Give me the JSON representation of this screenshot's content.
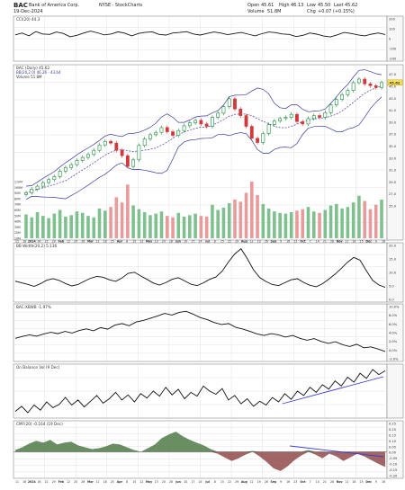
{
  "header": {
    "symbol": "BAC",
    "company": "Bank of America Corp.",
    "exchange_info": "NYSE · StockCharts",
    "date": "19-Dec-2024",
    "open_label": "Open",
    "open": "45.61",
    "high_label": "High",
    "high": "46.13",
    "low_label": "Low",
    "low": "45.50",
    "last_label": "Last",
    "last": "45.62",
    "volume_label": "Volume",
    "volume": "51.8M",
    "chg_label": "Chg",
    "chg": "+0.07 (+0.15%)"
  },
  "colors": {
    "up": "#1e8a3c",
    "down": "#d13a3a",
    "vol_up": "#7fc08f",
    "vol_down": "#e99a9a",
    "bb": "#3a3aa0",
    "line": "#111111",
    "trend": "#3b3bd6",
    "cmf_fill": "#4d7a46",
    "cmf_neg": "#8a3f3f",
    "grid": "#d8d8d8",
    "last_badge": "#ffe24a"
  },
  "chart_data": [
    {
      "type": "line",
      "name": "cci-panel",
      "legend": "CCI(20) 44.3",
      "ylim": [
        -200,
        200
      ],
      "y_ticks": [
        "200",
        "100",
        "0",
        "-100",
        "-200"
      ],
      "values": [
        40,
        60,
        30,
        75,
        50,
        45,
        70,
        55,
        20,
        35,
        60,
        80,
        62,
        40,
        50,
        72,
        58,
        30,
        55,
        68,
        72,
        45,
        38,
        60,
        66,
        74,
        50,
        38,
        55,
        70,
        60,
        42,
        55,
        66,
        48,
        30,
        52,
        70,
        64,
        50,
        45,
        22,
        35,
        60,
        48,
        28,
        18,
        40,
        66,
        55,
        40,
        30,
        48,
        60,
        44
      ]
    },
    {
      "type": "candlestick",
      "name": "price-panel",
      "legend": "BAC (Daily) 45.62",
      "bb_legend": "BB(20,2.0) 46.26 - 43.64",
      "vol_legend": "Volume 51.8M",
      "ylim": [
        22,
        48
      ],
      "y_ticks": [
        "47.0",
        "46.0",
        "45.0",
        "44.0",
        "43.0",
        "42.0",
        "41.0",
        "40.0",
        "39.0",
        "38.0",
        "37.0",
        "36.0",
        "35.0",
        "34.0",
        "33.0",
        "32.0",
        "31.0",
        "30.0",
        "29.0",
        "28.0",
        "27.0",
        "26.0",
        "25.0"
      ],
      "last_value": "45.62",
      "x_ticks": [
        "11",
        "18",
        "2024",
        "16",
        "22",
        "29",
        "Feb",
        "12",
        "20",
        "26",
        "Mar",
        "11",
        "18",
        "25",
        "Apr",
        "8",
        "15",
        "22",
        "May",
        "13",
        "20",
        "28",
        "Jun",
        "10",
        "17",
        "24",
        "Jul",
        "8",
        "15",
        "22",
        "29",
        "Aug",
        "12",
        "19",
        "26",
        "Sep",
        "9",
        "16",
        "23",
        "Oct",
        "7",
        "14",
        "21",
        "28",
        "Nov",
        "11",
        "18",
        "25",
        "Dec",
        "9",
        "16"
      ],
      "volume_ticks": [
        "110M",
        "100M",
        "90M",
        "80M",
        "70M",
        "60M",
        "50M",
        "40M",
        "30M",
        "20M",
        "10M"
      ],
      "closes": [
        27.2,
        27.8,
        28.3,
        28.9,
        29.4,
        29.9,
        30.8,
        31.4,
        31.9,
        32.6,
        33.1,
        33.6,
        34.3,
        35.2,
        35.8,
        35.5,
        34.3,
        33.4,
        31.6,
        32.7,
        35.1,
        36.2,
        36.9,
        37.3,
        38.1,
        37.4,
        36.8,
        37.6,
        38.4,
        38.9,
        39.3,
        38.7,
        38.3,
        39.8,
        40.5,
        41.6,
        42.9,
        41.2,
        40.1,
        38.3,
        36.3,
        35.6,
        37.1,
        38.6,
        39.2,
        39.6,
        39.8,
        40.3,
        39.1,
        38.7,
        39.6,
        40.1,
        39.8,
        40.6,
        41.9,
        42.8,
        43.6,
        44.3,
        45.6,
        46.2,
        45.4,
        45.1,
        44.8,
        45.62
      ],
      "volumes": [
        32,
        28,
        35,
        30,
        27,
        33,
        38,
        29,
        31,
        36,
        34,
        30,
        28,
        40,
        37,
        42,
        55,
        48,
        72,
        44,
        39,
        35,
        31,
        33,
        36,
        30,
        28,
        34,
        29,
        31,
        33,
        30,
        29,
        45,
        38,
        41,
        47,
        52,
        49,
        61,
        76,
        58,
        46,
        40,
        36,
        34,
        33,
        35,
        37,
        39,
        42,
        36,
        34,
        38,
        44,
        46,
        40,
        42,
        48,
        57,
        50,
        39,
        45,
        51.8
      ]
    },
    {
      "type": "line",
      "name": "bb-width-panel",
      "legend": "BB Width(20,2) 5.136",
      "ylim": [
        0,
        24
      ],
      "y_ticks": [
        "20.0",
        "15.0",
        "10.0",
        "5.0",
        "0.0"
      ],
      "values": [
        8,
        7.2,
        6.5,
        5.6,
        6.8,
        8.4,
        9.1,
        8.3,
        6.9,
        5.8,
        6.4,
        7.9,
        9.3,
        10.2,
        9.8,
        8.6,
        7.9,
        9.4,
        11.6,
        12.1,
        10.4,
        8.8,
        7.1,
        6.2,
        7.3,
        8.8,
        9.6,
        8.1,
        6.6,
        5.9,
        7.2,
        8.8,
        9.9,
        12.6,
        16.8,
        20.5,
        22.9,
        18.4,
        13.2,
        9.6,
        7.8,
        6.4,
        5.9,
        7.3,
        8.6,
        9.1,
        7.4,
        6.1,
        5.4,
        6.8,
        8.9,
        11.2,
        13.8,
        16.7,
        18.9,
        17.6,
        12.8,
        8.3,
        6.2,
        5.14
      ]
    },
    {
      "type": "line",
      "name": "pct-b-panel",
      "legend": "BAC:XBWB -1.97%",
      "ylim": [
        -4,
        12
      ],
      "y_ticks": [
        "10.0%",
        "8.0%",
        "6.0%",
        "4.0%",
        "2.0%",
        "0.0%",
        "-2.0%"
      ],
      "values": [
        2.2,
        2.8,
        3.3,
        2.9,
        3.6,
        4.1,
        3.7,
        4.4,
        3.9,
        4.7,
        5.2,
        4.6,
        5.6,
        5.1,
        6.4,
        6.9,
        6.2,
        7.4,
        7.9,
        8.6,
        9.3,
        10.1,
        9.6,
        10.4,
        10.8,
        9.9,
        8.8,
        8.1,
        7.2,
        6.6,
        6.9,
        5.7,
        5.1,
        4.4,
        3.6,
        3.1,
        3.7,
        3.3,
        2.6,
        3.1,
        2.2,
        1.6,
        2.1,
        1.2,
        0.6,
        1.1,
        0.2,
        -0.4,
        0.3,
        -0.8,
        -0.5,
        -1.2,
        -1.97
      ]
    },
    {
      "type": "line",
      "name": "obv-panel",
      "legend": "On Balance Vol (9 Dec)",
      "values": [
        20,
        28,
        18,
        30,
        22,
        35,
        26,
        31,
        42,
        30,
        38,
        27,
        36,
        45,
        33,
        40,
        50,
        38,
        46,
        35,
        48,
        41,
        52,
        44,
        58,
        46,
        55,
        40,
        50,
        44,
        60,
        52,
        47,
        56,
        38,
        45,
        32,
        40,
        28,
        36,
        30,
        42,
        35,
        48,
        39,
        52,
        45,
        58,
        50,
        62,
        55,
        68,
        60,
        74,
        66,
        80,
        72,
        86,
        78,
        84
      ]
    },
    {
      "type": "area",
      "name": "cmf-panel",
      "legend": "CMF(20) -0.164 (19 Dec)",
      "ylim": [
        -0.25,
        0.3
      ],
      "y_ticks": [
        "0.25",
        "0.20",
        "0.15",
        "0.10",
        "0.05",
        "0.00",
        "-0.05",
        "-0.10",
        "-0.15",
        "-0.20"
      ],
      "values": [
        0.02,
        0.05,
        0.09,
        0.12,
        0.1,
        0.13,
        0.08,
        0.1,
        0.11,
        0.07,
        0.05,
        0.03,
        0.04,
        0.06,
        0.09,
        0.08,
        0.05,
        0.02,
        0.0,
        0.04,
        0.08,
        0.15,
        0.19,
        0.22,
        0.17,
        0.13,
        0.1,
        0.07,
        0.03,
        -0.02,
        -0.06,
        -0.1,
        -0.07,
        -0.03,
        0.01,
        -0.05,
        -0.11,
        -0.18,
        -0.21,
        -0.16,
        -0.09,
        -0.04,
        0.02,
        -0.03,
        -0.07,
        -0.02,
        -0.05,
        -0.1,
        -0.06,
        -0.02,
        -0.05,
        -0.09,
        -0.13,
        -0.164
      ]
    }
  ]
}
